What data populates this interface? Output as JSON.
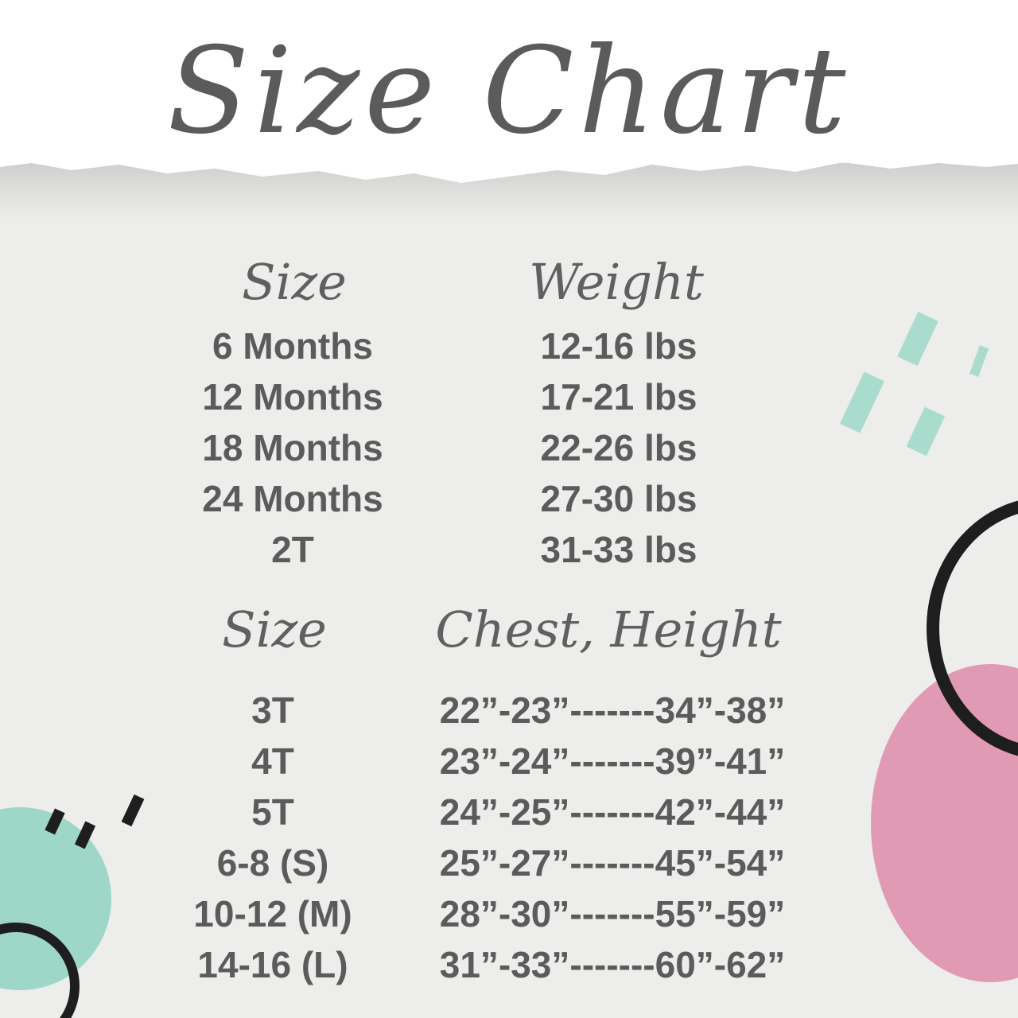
{
  "title": "Size Chart",
  "section1": {
    "headers": [
      "Size",
      "Weight"
    ],
    "rows": [
      {
        "size": "6 Months",
        "weight": "12-16 lbs"
      },
      {
        "size": "12 Months",
        "weight": "17-21 lbs"
      },
      {
        "size": "18 Months",
        "weight": "22-26 lbs"
      },
      {
        "size": "24 Months",
        "weight": "27-30 lbs"
      },
      {
        "size": "2T",
        "weight": "31-33 lbs"
      }
    ]
  },
  "section2": {
    "headers": [
      "Size",
      "Chest, Height"
    ],
    "rows": [
      {
        "size": "3T",
        "measure": "22”-23”-------34”-38”"
      },
      {
        "size": "4T",
        "measure": "23”-24”-------39”-41”"
      },
      {
        "size": "5T",
        "measure": "24”-25”-------42”-44”"
      },
      {
        "size": "6-8 (S)",
        "measure": "25”-27”-------45”-54”"
      },
      {
        "size": "10-12 (M)",
        "measure": "28”-30”-------55”-59”"
      },
      {
        "size": "14-16 (L)",
        "measure": "31”-33”-------60”-62”"
      }
    ]
  },
  "colors": {
    "text": "#5b5b5b",
    "mint": "#9ed6c8",
    "pink": "#e09ab4",
    "ring": "#1e1e1e",
    "background": "#ededeb"
  }
}
